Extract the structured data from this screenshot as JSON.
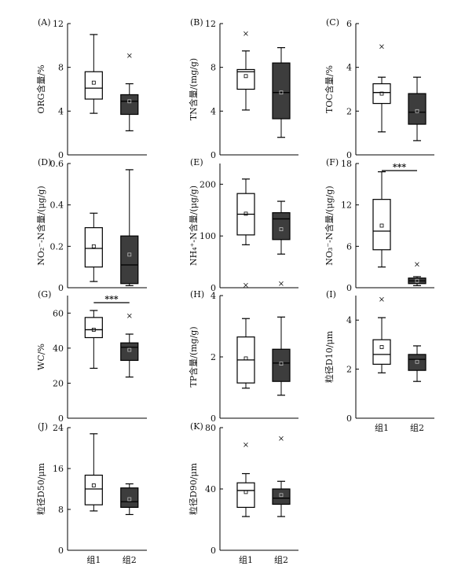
{
  "chart_data": [
    {
      "type": "box",
      "panel": "(A)",
      "ylabel": "ORG含量/%",
      "ylim": [
        0,
        12
      ],
      "yticks": [
        0,
        4,
        8,
        12
      ],
      "categories": [
        "组1",
        "组2"
      ],
      "series": [
        {
          "name": "组1",
          "fill": "#ffffff",
          "whisker_low": 3.8,
          "q1": 5.1,
          "median": 6.1,
          "q3": 7.6,
          "whisker_high": 11.0,
          "mean": 6.6,
          "outliers": []
        },
        {
          "name": "组2",
          "fill": "#3d3d3d",
          "whisker_low": 2.2,
          "q1": 3.7,
          "median": 4.9,
          "q3": 5.5,
          "whisker_high": 6.5,
          "mean": 4.9,
          "outliers": [
            9.1
          ]
        }
      ]
    },
    {
      "type": "box",
      "panel": "(B)",
      "ylabel": "TN含量/(mg/g)",
      "ylim": [
        0,
        12
      ],
      "yticks": [
        0,
        4,
        8,
        12
      ],
      "categories": [
        "组1",
        "组2"
      ],
      "series": [
        {
          "name": "组1",
          "fill": "#ffffff",
          "whisker_low": 4.1,
          "q1": 6.0,
          "median": 7.6,
          "q3": 7.8,
          "whisker_high": 9.5,
          "mean": 7.2,
          "outliers": [
            11.1
          ]
        },
        {
          "name": "组2",
          "fill": "#3d3d3d",
          "whisker_low": 1.6,
          "q1": 3.3,
          "median": 5.7,
          "q3": 8.4,
          "whisker_high": 9.8,
          "mean": 5.7,
          "outliers": []
        }
      ]
    },
    {
      "type": "box",
      "panel": "(C)",
      "ylabel": "TOC含量/%",
      "ylim": [
        0,
        6
      ],
      "yticks": [
        0,
        2,
        4,
        6
      ],
      "categories": [
        "组1",
        "组2"
      ],
      "series": [
        {
          "name": "组1",
          "fill": "#ffffff",
          "whisker_low": 1.05,
          "q1": 2.35,
          "median": 2.85,
          "q3": 3.25,
          "whisker_high": 3.55,
          "mean": 2.8,
          "outliers": [
            4.95
          ]
        },
        {
          "name": "组2",
          "fill": "#3d3d3d",
          "whisker_low": 0.65,
          "q1": 1.4,
          "median": 1.95,
          "q3": 2.8,
          "whisker_high": 3.55,
          "mean": 2.0,
          "outliers": []
        }
      ]
    },
    {
      "type": "box",
      "panel": "(D)",
      "ylabel": "NO₂⁻-N含量/(μg/g)",
      "ylim": [
        0,
        0.6
      ],
      "yticks": [
        0,
        0.2,
        0.4,
        0.6
      ],
      "categories": [
        "组1",
        "组2"
      ],
      "series": [
        {
          "name": "组1",
          "fill": "#ffffff",
          "whisker_low": 0.03,
          "q1": 0.1,
          "median": 0.19,
          "q3": 0.29,
          "whisker_high": 0.36,
          "mean": 0.2,
          "outliers": []
        },
        {
          "name": "组2",
          "fill": "#3d3d3d",
          "whisker_low": 0.01,
          "q1": 0.02,
          "median": 0.11,
          "q3": 0.25,
          "whisker_high": 0.57,
          "mean": 0.16,
          "outliers": []
        }
      ]
    },
    {
      "type": "box",
      "panel": "(E)",
      "ylabel": "NH₄⁺-N含量/(μg/g)",
      "ylim": [
        0,
        240
      ],
      "yticks": [
        0,
        100,
        200
      ],
      "categories": [
        "组1",
        "组2"
      ],
      "series": [
        {
          "name": "组1",
          "fill": "#ffffff",
          "whisker_low": 83,
          "q1": 102,
          "median": 142,
          "q3": 182,
          "whisker_high": 210,
          "mean": 143,
          "outliers": [
            5
          ]
        },
        {
          "name": "组2",
          "fill": "#3d3d3d",
          "whisker_low": 65,
          "q1": 93,
          "median": 133,
          "q3": 145,
          "whisker_high": 167,
          "mean": 113,
          "outliers": [
            8
          ]
        }
      ]
    },
    {
      "type": "box",
      "panel": "(F)",
      "ylabel": "NO₃⁻-N含量/(μg/g)",
      "ylim": [
        0,
        18
      ],
      "yticks": [
        0,
        6,
        12,
        18
      ],
      "categories": [
        "组1",
        "组2"
      ],
      "series": [
        {
          "name": "组1",
          "fill": "#ffffff",
          "whisker_low": 3.0,
          "q1": 5.5,
          "median": 8.2,
          "q3": 12.8,
          "whisker_high": 16.8,
          "mean": 9.0,
          "outliers": []
        },
        {
          "name": "组2",
          "fill": "#3d3d3d",
          "whisker_low": 0.3,
          "q1": 0.6,
          "median": 1.0,
          "q3": 1.4,
          "whisker_high": 1.6,
          "mean": 1.0,
          "outliers": [
            3.4
          ]
        }
      ],
      "significance": "***"
    },
    {
      "type": "box",
      "panel": "(G)",
      "ylabel": "WC/%",
      "ylim": [
        0,
        70
      ],
      "yticks": [
        0,
        20,
        40,
        60
      ],
      "categories": [
        "组1",
        "组2"
      ],
      "series": [
        {
          "name": "组1",
          "fill": "#ffffff",
          "whisker_low": 28.5,
          "q1": 46,
          "median": 50.5,
          "q3": 57.5,
          "whisker_high": 61.5,
          "mean": 50.5,
          "outliers": []
        },
        {
          "name": "组2",
          "fill": "#3d3d3d",
          "whisker_low": 23.5,
          "q1": 33,
          "median": 40.5,
          "q3": 43,
          "whisker_high": 48,
          "mean": 39,
          "outliers": [
            58.5
          ]
        }
      ],
      "significance": "***"
    },
    {
      "type": "box",
      "panel": "(H)",
      "ylabel": "TP含量/(mg/g)",
      "ylim": [
        0,
        4
      ],
      "yticks": [
        0,
        2,
        4
      ],
      "categories": [
        "组1",
        "组2"
      ],
      "series": [
        {
          "name": "组1",
          "fill": "#ffffff",
          "whisker_low": 0.98,
          "q1": 1.15,
          "median": 1.9,
          "q3": 2.65,
          "whisker_high": 3.25,
          "mean": 1.95,
          "outliers": []
        },
        {
          "name": "组2",
          "fill": "#3d3d3d",
          "whisker_low": 0.75,
          "q1": 1.2,
          "median": 1.8,
          "q3": 2.25,
          "whisker_high": 3.3,
          "mean": 1.78,
          "outliers": []
        }
      ]
    },
    {
      "type": "box",
      "panel": "(I)",
      "ylabel": "粒径D10/μm",
      "ylim": [
        0,
        5
      ],
      "yticks": [
        0,
        2,
        4
      ],
      "categories": [
        "组1",
        "组2"
      ],
      "series": [
        {
          "name": "组1",
          "fill": "#ffffff",
          "whisker_low": 1.85,
          "q1": 2.2,
          "median": 2.6,
          "q3": 3.2,
          "whisker_high": 4.1,
          "mean": 2.9,
          "outliers": [
            4.85
          ]
        },
        {
          "name": "组2",
          "fill": "#3d3d3d",
          "whisker_low": 1.5,
          "q1": 1.95,
          "median": 2.4,
          "q3": 2.6,
          "whisker_high": 2.95,
          "mean": 2.3,
          "outliers": []
        }
      ]
    },
    {
      "type": "box",
      "panel": "(J)",
      "ylabel": "粒径D50/μm",
      "ylim": [
        0,
        24
      ],
      "yticks": [
        0,
        8,
        16,
        24
      ],
      "categories": [
        "组1",
        "组2"
      ],
      "series": [
        {
          "name": "组1",
          "fill": "#ffffff",
          "whisker_low": 7.7,
          "q1": 8.9,
          "median": 12.0,
          "q3": 14.7,
          "whisker_high": 22.8,
          "mean": 12.7,
          "outliers": []
        },
        {
          "name": "组2",
          "fill": "#3d3d3d",
          "whisker_low": 7.0,
          "q1": 8.4,
          "median": 9.5,
          "q3": 12.2,
          "whisker_high": 13.0,
          "mean": 10.0,
          "outliers": []
        }
      ]
    },
    {
      "type": "box",
      "panel": "(K)",
      "ylabel": "粒径D90/μm",
      "ylim": [
        0,
        80
      ],
      "yticks": [
        0,
        40,
        80
      ],
      "categories": [
        "组1",
        "组2"
      ],
      "series": [
        {
          "name": "组1",
          "fill": "#ffffff",
          "whisker_low": 22,
          "q1": 28,
          "median": 39,
          "q3": 44,
          "whisker_high": 50,
          "mean": 38,
          "outliers": [
            69
          ]
        },
        {
          "name": "组2",
          "fill": "#3d3d3d",
          "whisker_low": 22,
          "q1": 30,
          "median": 34,
          "q3": 40,
          "whisker_high": 45,
          "mean": 36,
          "outliers": [
            73
          ]
        }
      ]
    }
  ]
}
